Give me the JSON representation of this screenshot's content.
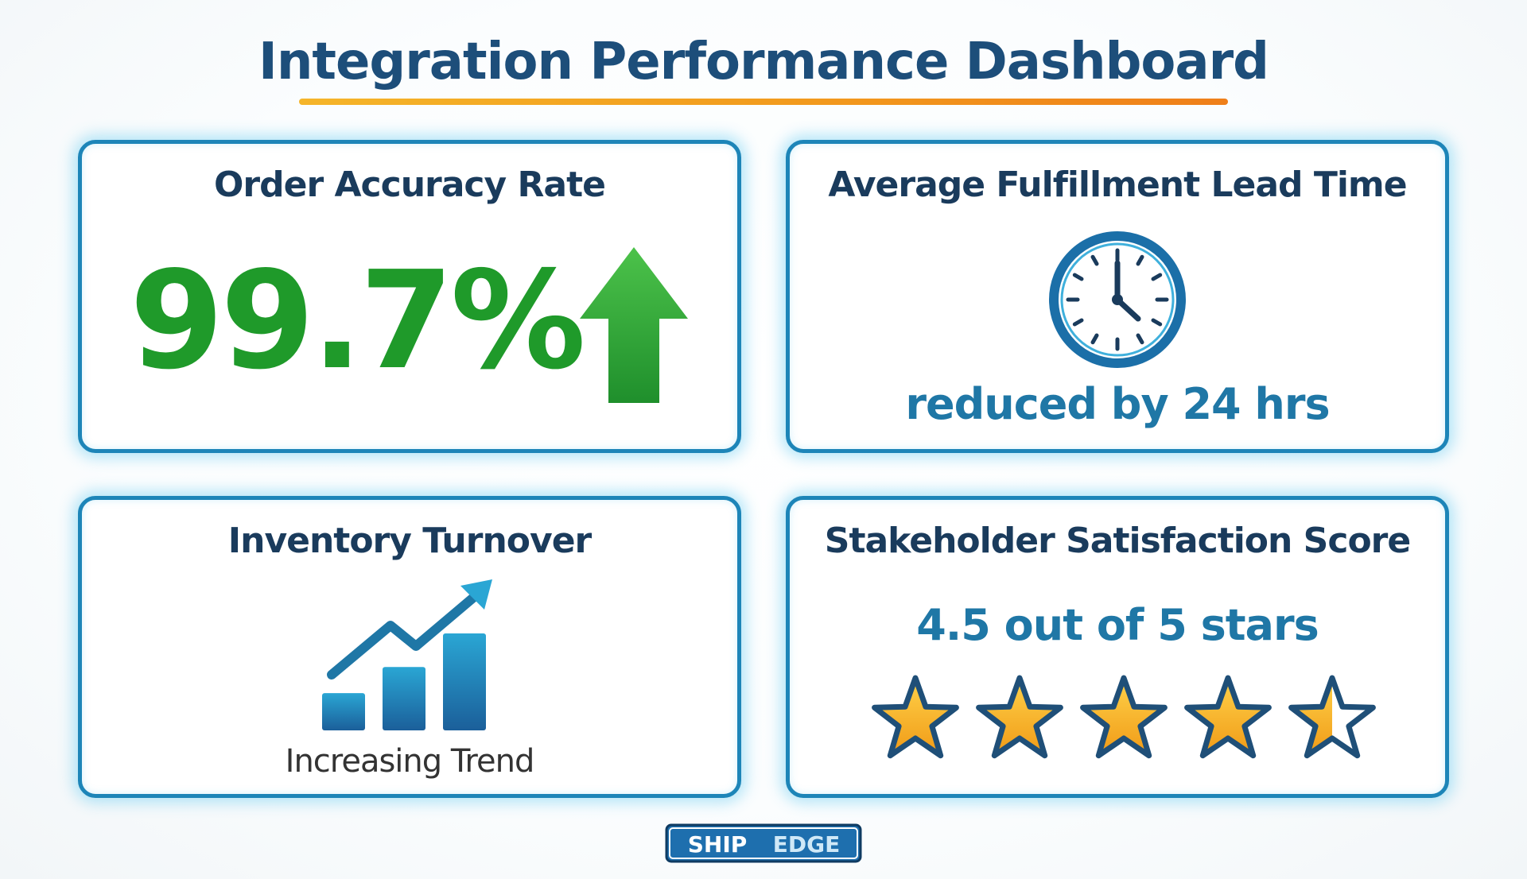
{
  "title": "Integration Performance Dashboard",
  "colors": {
    "title": "#1d4e7a",
    "underline_start": "#f5b52a",
    "underline_end": "#ef7f1a",
    "card_border": "#1d85b8",
    "card_glow": "#5ac8f0",
    "accuracy_green": "#1f9a2a",
    "accent_blue": "#1f77a6",
    "star_gold": "#f6b11f"
  },
  "cards": {
    "accuracy": {
      "title": "Order Accuracy Rate",
      "value": "99.7%",
      "icon": "arrow-up-icon"
    },
    "lead_time": {
      "title": "Average Fulfillment Lead Time",
      "value": "reduced by 24 hrs",
      "icon": "clock-icon"
    },
    "turnover": {
      "title": "Inventory Turnover",
      "trend_label": "Increasing Trend",
      "icon": "bar-chart-trend-icon",
      "bar_values": [
        1,
        1.7,
        2.6
      ]
    },
    "satisfaction": {
      "title": "Stakeholder Satisfaction Score",
      "value": "4.5 out of 5 stars",
      "rating": 4.5,
      "max_rating": 5,
      "icon": "star-icon"
    }
  },
  "logo": {
    "text_left": "SHIP",
    "text_right": "EDGE"
  }
}
